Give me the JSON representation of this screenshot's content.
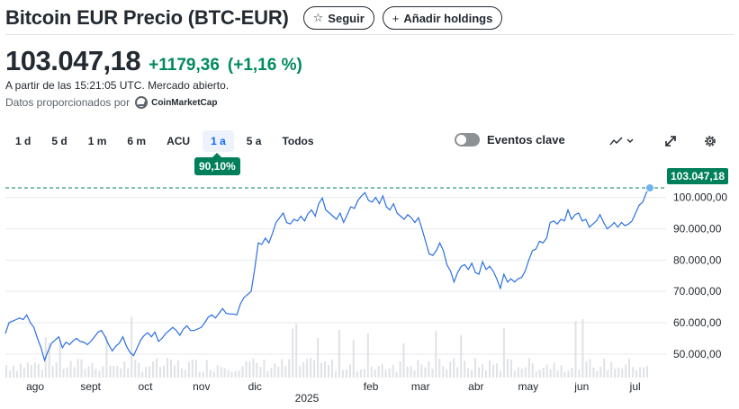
{
  "header": {
    "title": "Bitcoin EUR Precio (BTC-EUR)",
    "follow_label": "Seguir",
    "add_holdings_label": "Añadir holdings"
  },
  "quote": {
    "price": "103.047,18",
    "change": "+1179,36",
    "change_pct": "(+1,16 %)",
    "as_of": "A partir de las 15:21:05 UTC. Mercado abierto.",
    "provider_prefix": "Datos proporcionados por",
    "provider_name": "CoinMarketCap"
  },
  "ranges": [
    {
      "label": "1 d",
      "active": false
    },
    {
      "label": "5 d",
      "active": false
    },
    {
      "label": "1 m",
      "active": false
    },
    {
      "label": "6 m",
      "active": false
    },
    {
      "label": "ACU",
      "active": false
    },
    {
      "label": "1 a",
      "active": true
    },
    {
      "label": "5 a",
      "active": false
    },
    {
      "label": "Todos",
      "active": false
    }
  ],
  "events_toggle": {
    "label": "Eventos clave",
    "on": false
  },
  "range_change_badge": "90,10%",
  "colors": {
    "accent": "#0f69ff",
    "positive": "#00805a",
    "line": "#2c6fe0",
    "grid": "#e6e9ed"
  },
  "chart_data": {
    "type": "line",
    "title": "",
    "current_price_label": "103.047,18",
    "y_ticks": [
      "50.000,00",
      "60.000,00",
      "70.000,00",
      "80.000,00",
      "90.000,00",
      "100.000,00"
    ],
    "y_tick_values": [
      50000,
      60000,
      70000,
      80000,
      90000,
      100000
    ],
    "ylim": [
      42500,
      108500
    ],
    "x_ticks": [
      "ago",
      "sept",
      "oct",
      "nov",
      "dic",
      "feb",
      "mar",
      "abr",
      "may",
      "jun",
      "jul"
    ],
    "x_tick_fraction": [
      0.049,
      0.135,
      0.22,
      0.307,
      0.39,
      0.57,
      0.647,
      0.733,
      0.814,
      0.897,
      0.98
    ],
    "year_label": "2025",
    "series": [
      {
        "values": [
          56500,
          60000,
          60500,
          61000,
          61500,
          61000,
          62500,
          60000,
          58500,
          55000,
          52000,
          48000,
          51000,
          53500,
          54500,
          55500,
          52000,
          53800,
          53000,
          54200,
          55000,
          54000,
          53800,
          53000,
          54000,
          55500,
          57000,
          57500,
          55500,
          53000,
          51000,
          52500,
          53500,
          55500,
          52500,
          50500,
          49500,
          52000,
          54500,
          56000,
          56800,
          55500,
          57000,
          54000,
          55000,
          56500,
          57500,
          58500,
          57500,
          56000,
          58000,
          59000,
          57500,
          57500,
          58000,
          58500,
          60000,
          61800,
          62500,
          61500,
          63000,
          64500,
          63000,
          62800,
          62800,
          62500,
          66000,
          68000,
          69000,
          70000,
          77000,
          85500,
          85000,
          87000,
          85500,
          88500,
          92000,
          93500,
          95000,
          92000,
          91500,
          93000,
          92500,
          94000,
          92500,
          94800,
          96000,
          94000,
          98000,
          99800,
          96000,
          95000,
          94000,
          93000,
          95000,
          92000,
          94500,
          97000,
          96500,
          99000,
          100500,
          101500,
          99000,
          98500,
          100000,
          98000,
          100500,
          97000,
          96000,
          98000,
          95000,
          94000,
          93000,
          94500,
          93500,
          92000,
          93500,
          90000,
          86000,
          82000,
          81500,
          83000,
          85500,
          83000,
          78500,
          76500,
          73000,
          76000,
          78000,
          78500,
          77000,
          79000,
          76000,
          75500,
          79500,
          77000,
          78000,
          76500,
          74000,
          71000,
          75500,
          73000,
          74000,
          73000,
          74000,
          74500,
          76500,
          80000,
          83000,
          83500,
          86000,
          85500,
          87000,
          92000,
          92500,
          91500,
          93000,
          92500,
          96000,
          93000,
          94500,
          95000,
          92500,
          93000,
          90500,
          91500,
          92500,
          94500,
          92000,
          90000,
          90800,
          92000,
          90500,
          92000,
          91000,
          91500,
          92500,
          95000,
          97500,
          98500,
          101500,
          103047
        ]
      }
    ]
  }
}
